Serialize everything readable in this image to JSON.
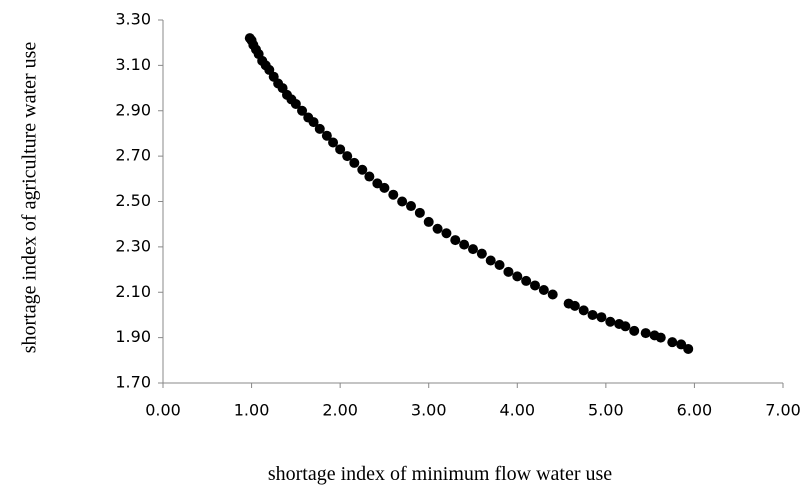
{
  "chart_data": {
    "type": "scatter",
    "xlabel": "shortage index of minimum flow water use",
    "ylabel": "shortage index of agriculture water use",
    "color": "#000000",
    "x": [
      0.98,
      1.0,
      1.02,
      1.05,
      1.08,
      1.12,
      1.16,
      1.2,
      1.25,
      1.3,
      1.35,
      1.4,
      1.45,
      1.5,
      1.57,
      1.64,
      1.7,
      1.77,
      1.85,
      1.92,
      2.0,
      2.08,
      2.16,
      2.25,
      2.33,
      2.42,
      2.5,
      2.6,
      2.7,
      2.8,
      2.9,
      3.0,
      3.1,
      3.2,
      3.3,
      3.4,
      3.5,
      3.6,
      3.7,
      3.8,
      3.9,
      4.0,
      4.1,
      4.2,
      4.3,
      4.4,
      4.58,
      4.65,
      4.75,
      4.85,
      4.95,
      5.05,
      5.15,
      5.22,
      5.32,
      5.45,
      5.55,
      5.62,
      5.75,
      5.85,
      5.93
    ],
    "values": [
      3.22,
      3.21,
      3.19,
      3.17,
      3.15,
      3.12,
      3.1,
      3.08,
      3.05,
      3.02,
      3.0,
      2.97,
      2.95,
      2.93,
      2.9,
      2.87,
      2.85,
      2.82,
      2.79,
      2.76,
      2.73,
      2.7,
      2.67,
      2.64,
      2.61,
      2.58,
      2.56,
      2.53,
      2.5,
      2.48,
      2.45,
      2.41,
      2.38,
      2.36,
      2.33,
      2.31,
      2.29,
      2.27,
      2.24,
      2.22,
      2.19,
      2.17,
      2.15,
      2.13,
      2.11,
      2.09,
      2.05,
      2.04,
      2.02,
      2.0,
      1.99,
      1.97,
      1.96,
      1.95,
      1.93,
      1.92,
      1.91,
      1.9,
      1.88,
      1.87,
      1.85
    ],
    "xlim": [
      0,
      7
    ],
    "xticks": [
      {
        "value": 0,
        "label": "0.00"
      },
      {
        "value": 1,
        "label": "1.00"
      },
      {
        "value": 2,
        "label": "2.00"
      },
      {
        "value": 3,
        "label": "3.00"
      },
      {
        "value": 4,
        "label": "4.00"
      },
      {
        "value": 5,
        "label": "5.00"
      },
      {
        "value": 6,
        "label": "6.00"
      },
      {
        "value": 7,
        "label": "7.00"
      }
    ],
    "ylim": [
      1.7,
      3.3
    ],
    "yticks": [
      {
        "value": 1.7,
        "label": "1.70"
      },
      {
        "value": 1.9,
        "label": "1.90"
      },
      {
        "value": 2.1,
        "label": "2.10"
      },
      {
        "value": 2.3,
        "label": "2.30"
      },
      {
        "value": 2.5,
        "label": "2.50"
      },
      {
        "value": 2.7,
        "label": "2.70"
      },
      {
        "value": 2.9,
        "label": "2.90"
      },
      {
        "value": 3.1,
        "label": "3.10"
      },
      {
        "value": 3.3,
        "label": "3.30"
      }
    ]
  }
}
